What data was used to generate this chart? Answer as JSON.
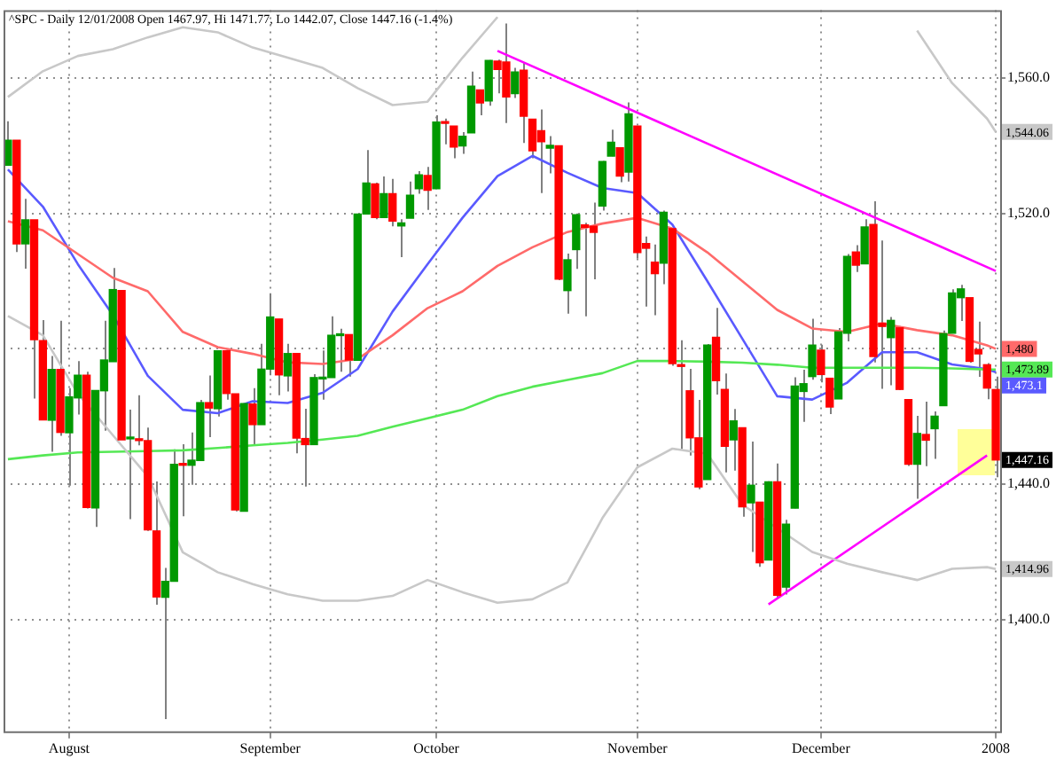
{
  "chart_data": {
    "type": "candlestick",
    "title": "^SPC - Daily 12/01/2008 Open 1467.97, Hi 1471.77, Lo 1442.07, Close 1447.16 (-1.4%)",
    "categories": [
      null,
      null,
      null,
      null,
      null,
      null,
      null,
      "August",
      null,
      null,
      null,
      null,
      null,
      null,
      null,
      null,
      null,
      null,
      null,
      null,
      null,
      null,
      null,
      null,
      null,
      null,
      null,
      null,
      null,
      null,
      "September",
      null,
      null,
      null,
      null,
      null,
      null,
      null,
      null,
      null,
      null,
      null,
      null,
      null,
      null,
      null,
      null,
      null,
      null,
      "October",
      null,
      null,
      null,
      null,
      null,
      null,
      null,
      null,
      null,
      null,
      null,
      null,
      null,
      null,
      null,
      null,
      null,
      null,
      null,
      null,
      null,
      null,
      "November",
      null,
      null,
      null,
      null,
      null,
      null,
      null,
      null,
      null,
      null,
      null,
      null,
      null,
      null,
      null,
      null,
      null,
      null,
      null,
      null,
      "December",
      null,
      null,
      null,
      null,
      null,
      null,
      null,
      null,
      null,
      null,
      null,
      null,
      null,
      null,
      null,
      null,
      null,
      null,
      null,
      "2008"
    ],
    "ohlc": [
      [
        1534.2,
        1547.2,
        1534.2,
        1541.6
      ],
      [
        1541.6,
        1541.6,
        1508.6,
        1511.0
      ],
      [
        1511.0,
        1524.3,
        1503.7,
        1518.1
      ],
      [
        1518.1,
        1518.1,
        1465.3,
        1482.7
      ],
      [
        1482.4,
        1488.5,
        1458.9,
        1459.0
      ],
      [
        1458.9,
        1477.9,
        1449.6,
        1473.9
      ],
      [
        1473.9,
        1488.3,
        1454.3,
        1455.3
      ],
      [
        1455.2,
        1468.4,
        1439.6,
        1465.8
      ],
      [
        1465.5,
        1476.4,
        1460.6,
        1472.2
      ],
      [
        1472.2,
        1473.2,
        1432.8,
        1433.1
      ],
      [
        1433.0,
        1467.7,
        1427.4,
        1467.7
      ],
      [
        1467.6,
        1488.3,
        1455.8,
        1476.7
      ],
      [
        1476.2,
        1503.9,
        1476.2,
        1497.5
      ],
      [
        1497.2,
        1497.2,
        1453.1,
        1453.1
      ],
      [
        1453.4,
        1462.0,
        1429.7,
        1453.6
      ],
      [
        1453.4,
        1466.3,
        1451.5,
        1452.9
      ],
      [
        1452.9,
        1456.7,
        1426.2,
        1426.5
      ],
      [
        1426.2,
        1440.8,
        1404.4,
        1406.7
      ],
      [
        1406.6,
        1415.3,
        1370.6,
        1411.3
      ],
      [
        1411.3,
        1450.3,
        1411.3,
        1445.9
      ],
      [
        1445.9,
        1451.8,
        1430.5,
        1445.6
      ],
      [
        1445.6,
        1455.3,
        1439.8,
        1447.1
      ],
      [
        1447.0,
        1464.9,
        1447.0,
        1464.1
      ],
      [
        1464.1,
        1472.1,
        1453.9,
        1462.5
      ],
      [
        1462.3,
        1479.4,
        1460.0,
        1479.4
      ],
      [
        1479.4,
        1479.4,
        1465.0,
        1466.8
      ],
      [
        1466.7,
        1466.7,
        1432.0,
        1432.4
      ],
      [
        1432.0,
        1463.8,
        1432.0,
        1463.8
      ],
      [
        1463.7,
        1468.4,
        1451.3,
        1457.6
      ],
      [
        1457.6,
        1481.5,
        1457.6,
        1474.0
      ],
      [
        1474.0,
        1496.4,
        1472.2,
        1489.4
      ],
      [
        1488.8,
        1488.8,
        1466.3,
        1472.3
      ],
      [
        1472.0,
        1481.5,
        1467.4,
        1478.6
      ],
      [
        1478.6,
        1478.6,
        1449.1,
        1453.6
      ],
      [
        1453.5,
        1462.3,
        1439.3,
        1451.7
      ],
      [
        1451.7,
        1472.5,
        1451.7,
        1471.5
      ],
      [
        1471.1,
        1479.5,
        1465.0,
        1471.6
      ],
      [
        1471.5,
        1489.6,
        1471.5,
        1484.0
      ],
      [
        1483.9,
        1485.9,
        1473.2,
        1484.3
      ],
      [
        1484.2,
        1484.2,
        1471.8,
        1476.7
      ],
      [
        1476.6,
        1519.9,
        1476.6,
        1519.8
      ],
      [
        1519.8,
        1538.7,
        1519.8,
        1529.0
      ],
      [
        1528.7,
        1529.1,
        1518.3,
        1518.8
      ],
      [
        1518.8,
        1530.9,
        1518.8,
        1525.8
      ],
      [
        1525.8,
        1530.2,
        1516.2,
        1517.7
      ],
      [
        1516.3,
        1518.3,
        1507.1,
        1517.2
      ],
      [
        1518.6,
        1529.4,
        1518.6,
        1525.4
      ],
      [
        1527.3,
        1532.5,
        1525.8,
        1531.4
      ],
      [
        1531.2,
        1533.7,
        1521.0,
        1526.8
      ],
      [
        1527.3,
        1549.0,
        1527.3,
        1547.0
      ],
      [
        1546.9,
        1548.0,
        1540.4,
        1546.6
      ],
      [
        1545.8,
        1545.8,
        1536.3,
        1539.6
      ],
      [
        1539.9,
        1544.0,
        1537.6,
        1542.8
      ],
      [
        1543.8,
        1561.9,
        1543.8,
        1557.6
      ],
      [
        1556.5,
        1556.5,
        1549.0,
        1552.6
      ],
      [
        1553.2,
        1565.3,
        1551.8,
        1565.2
      ],
      [
        1565.0,
        1565.4,
        1555.5,
        1562.5
      ],
      [
        1564.7,
        1576.1,
        1546.7,
        1554.4
      ],
      [
        1555.4,
        1563.0,
        1554.1,
        1561.8
      ],
      [
        1562.3,
        1564.7,
        1540.8,
        1548.7
      ],
      [
        1547.8,
        1547.8,
        1536.3,
        1538.5
      ],
      [
        1544.4,
        1550.7,
        1526.0,
        1541.2
      ],
      [
        1539.3,
        1542.8,
        1531.8,
        1540.1
      ],
      [
        1540.0,
        1540.0,
        1500.3,
        1500.6
      ],
      [
        1497.2,
        1508.1,
        1490.4,
        1506.3
      ],
      [
        1509.3,
        1520.0,
        1503.6,
        1519.6
      ],
      [
        1516.6,
        1517.2,
        1489.6,
        1515.9
      ],
      [
        1516.2,
        1523.2,
        1500.5,
        1514.4
      ],
      [
        1522.2,
        1535.5,
        1520.8,
        1535.3
      ],
      [
        1536.9,
        1544.7,
        1536.9,
        1541.0
      ],
      [
        1539.4,
        1539.4,
        1529.2,
        1531.0
      ],
      [
        1532.2,
        1552.8,
        1529.4,
        1549.4
      ],
      [
        1545.8,
        1545.8,
        1506.7,
        1508.4
      ],
      [
        1511.1,
        1513.2,
        1492.5,
        1509.7
      ],
      [
        1505.6,
        1510.8,
        1489.9,
        1502.2
      ],
      [
        1505.3,
        1520.8,
        1499.1,
        1520.3
      ],
      [
        1515.5,
        1515.5,
        1475.0,
        1475.6
      ],
      [
        1475.3,
        1482.5,
        1450.4,
        1474.8
      ],
      [
        1467.6,
        1474.1,
        1448.5,
        1453.7
      ],
      [
        1453.7,
        1464.9,
        1438.5,
        1439.2
      ],
      [
        1441.4,
        1481.4,
        1441.4,
        1481.1
      ],
      [
        1483.4,
        1492.1,
        1466.5,
        1470.6
      ],
      [
        1468.0,
        1472.7,
        1443.5,
        1451.2
      ],
      [
        1453.1,
        1462.2,
        1444.0,
        1458.7
      ],
      [
        1456.7,
        1456.7,
        1430.4,
        1433.3
      ],
      [
        1434.5,
        1452.6,
        1420.0,
        1439.7
      ],
      [
        1434.7,
        1434.7,
        1415.6,
        1416.8
      ],
      [
        1417.6,
        1440.9,
        1417.6,
        1440.7
      ],
      [
        1440.7,
        1446.1,
        1406.1,
        1407.2
      ],
      [
        1409.6,
        1429.5,
        1407.4,
        1428.2
      ],
      [
        1432.9,
        1471.6,
        1432.9,
        1469.0
      ],
      [
        1467.4,
        1473.8,
        1458.4,
        1469.7
      ],
      [
        1471.8,
        1488.9,
        1470.9,
        1481.1
      ],
      [
        1479.6,
        1481.2,
        1470.1,
        1472.4
      ],
      [
        1471.3,
        1471.3,
        1460.7,
        1462.8
      ],
      [
        1465.2,
        1486.1,
        1465.2,
        1485.0
      ],
      [
        1484.6,
        1508.0,
        1482.2,
        1507.3
      ],
      [
        1508.6,
        1510.6,
        1502.7,
        1504.7
      ],
      [
        1505.1,
        1518.3,
        1505.0,
        1516.0
      ],
      [
        1516.7,
        1523.6,
        1476.0,
        1477.7
      ],
      [
        1487.6,
        1512.0,
        1468.2,
        1486.6
      ],
      [
        1483.3,
        1489.4,
        1469.2,
        1488.4
      ],
      [
        1486.2,
        1486.7,
        1467.8,
        1468.0
      ],
      [
        1465.0,
        1465.0,
        1445.4,
        1445.9
      ],
      [
        1445.9,
        1460.2,
        1435.7,
        1455.0
      ],
      [
        1454.7,
        1464.4,
        1445.3,
        1453.0
      ],
      [
        1456.4,
        1461.5,
        1447.5,
        1460.1
      ],
      [
        1463.2,
        1485.4,
        1463.2,
        1484.5
      ],
      [
        1484.6,
        1497.6,
        1484.6,
        1496.5
      ],
      [
        1495.1,
        1498.9,
        1488.2,
        1497.7
      ],
      [
        1495.1,
        1495.1,
        1475.9,
        1476.3
      ],
      [
        1479.8,
        1488.0,
        1471.7,
        1478.5
      ],
      [
        1475.3,
        1475.8,
        1465.1,
        1468.4
      ],
      [
        1467.97,
        1471.77,
        1442.07,
        1447.16
      ]
    ],
    "colors": [
      "#009900",
      "#ff0000",
      "#009900",
      "#ff0000",
      "#ff0000",
      "#009900",
      "#ff0000",
      "#009900",
      "#009900",
      "#ff0000",
      "#009900",
      "#009900",
      "#009900",
      "#ff0000",
      "#009900",
      "#ff0000",
      "#ff0000",
      "#ff0000",
      "#009900",
      "#009900",
      "#ff0000",
      "#009900",
      "#009900",
      "#ff0000",
      "#009900",
      "#ff0000",
      "#ff0000",
      "#009900",
      "#ff0000",
      "#009900",
      "#009900",
      "#ff0000",
      "#009900",
      "#ff0000",
      "#ff0000",
      "#009900",
      "#009900",
      "#009900",
      "#009900",
      "#ff0000",
      "#009900",
      "#009900",
      "#ff0000",
      "#009900",
      "#ff0000",
      "#009900",
      "#009900",
      "#009900",
      "#ff0000",
      "#009900",
      "#ff0000",
      "#ff0000",
      "#009900",
      "#009900",
      "#ff0000",
      "#009900",
      "#ff0000",
      "#ff0000",
      "#009900",
      "#ff0000",
      "#ff0000",
      "#ff0000",
      "#009900",
      "#ff0000",
      "#009900",
      "#009900",
      "#ff0000",
      "#ff0000",
      "#009900",
      "#009900",
      "#ff0000",
      "#009900",
      "#ff0000",
      "#ff0000",
      "#ff0000",
      "#009900",
      "#ff0000",
      "#ff0000",
      "#ff0000",
      "#ff0000",
      "#009900",
      "#ff0000",
      "#ff0000",
      "#009900",
      "#ff0000",
      "#009900",
      "#ff0000",
      "#009900",
      "#ff0000",
      "#009900",
      "#009900",
      "#009900",
      "#009900",
      "#ff0000",
      "#ff0000",
      "#009900",
      "#009900",
      "#ff0000",
      "#009900",
      "#ff0000",
      "#ff0000",
      "#009900",
      "#ff0000",
      "#ff0000",
      "#009900",
      "#ff0000",
      "#009900",
      "#009900",
      "#009900",
      "#009900",
      "#ff0000",
      "#ff0000",
      "#ff0000",
      "#ff0000"
    ],
    "value_labels": [
      null,
      null,
      null,
      null,
      null,
      null,
      null,
      null,
      null,
      null,
      null,
      null,
      null,
      null,
      null,
      null,
      null,
      null,
      null,
      null,
      null,
      null,
      null,
      null,
      null,
      null,
      null,
      null,
      null,
      null,
      null,
      null,
      null,
      null,
      null,
      null,
      null,
      null,
      null,
      null,
      null,
      null,
      null,
      null,
      null,
      null,
      null,
      null,
      null,
      null,
      null,
      null,
      null,
      null,
      null,
      null,
      null,
      null,
      null,
      null,
      null,
      null,
      null,
      null,
      null,
      null,
      null,
      null,
      null,
      null,
      null,
      null,
      null,
      null,
      null,
      null,
      null,
      null,
      null,
      null,
      null,
      null,
      null,
      null,
      null,
      null,
      null,
      null,
      null,
      null,
      null,
      null,
      null,
      null,
      null,
      null,
      null,
      null,
      null,
      null,
      null,
      null,
      null,
      null,
      null,
      null,
      null,
      null,
      null,
      null,
      null,
      null,
      null,
      "1,447.16"
    ],
    "ylim": [
      1367,
      1580
    ],
    "yticks": [
      {
        "value": 1400,
        "label": "1,400.0"
      },
      {
        "value": 1440,
        "label": "1,440.0"
      },
      {
        "value": 1480,
        "label": null
      },
      {
        "value": 1520,
        "label": "1,520.0"
      },
      {
        "value": 1560,
        "label": "1,560.0"
      }
    ],
    "grid": true,
    "series": [
      {
        "type": "line",
        "color": "#c8c8c8",
        "values": [
          1554.4,
          null,
          null,
          null,
          1562,
          null,
          null,
          null,
          1566.5,
          null,
          null,
          null,
          1568.5,
          null,
          null,
          null,
          1572,
          null,
          null,
          null,
          1575,
          null,
          null,
          null,
          1573.5,
          null,
          null,
          null,
          1569,
          null,
          null,
          null,
          1566,
          null,
          null,
          null,
          1563,
          null,
          null,
          null,
          1557,
          null,
          null,
          null,
          1552,
          null,
          null,
          null,
          1553,
          null,
          null,
          null,
          1566,
          null,
          null,
          null,
          1578,
          null,
          null,
          null,
          null,
          null,
          null,
          null,
          null,
          null,
          null,
          null,
          null,
          null,
          null,
          null,
          null,
          null,
          null,
          null,
          null,
          null,
          null,
          null,
          null,
          null,
          null,
          null,
          null,
          null,
          null,
          null,
          null,
          null,
          null,
          null,
          null,
          null,
          null,
          null,
          null,
          null,
          null,
          null,
          null,
          null,
          null,
          null,
          null,
          null,
          null,
          null,
          null,
          null,
          null,
          null,
          null,
          null
        ]
      },
      {
        "type": "line",
        "color": "#c8c8c8",
        "values": [
          null,
          null,
          null,
          null,
          null,
          null,
          null,
          null,
          null,
          null,
          null,
          null,
          null,
          null,
          null,
          null,
          null,
          null,
          null,
          null,
          null,
          null,
          null,
          null,
          null,
          null,
          null,
          null,
          null,
          null,
          null,
          null,
          null,
          null,
          null,
          null,
          null,
          null,
          null,
          null,
          null,
          null,
          null,
          null,
          null,
          null,
          null,
          null,
          null,
          null,
          null,
          null,
          null,
          null,
          null,
          null,
          null,
          null,
          null,
          null,
          null,
          null,
          null,
          null,
          null,
          null,
          null,
          null,
          null,
          null,
          null,
          null,
          null,
          null,
          null,
          null,
          null,
          null,
          null,
          null,
          null,
          null,
          null,
          null,
          null,
          null,
          null,
          null,
          null,
          null,
          null,
          null,
          null,
          null,
          null,
          null,
          null,
          null,
          null,
          null,
          null,
          null,
          null,
          null,
          1574,
          null,
          null,
          null,
          1558.5,
          null,
          null,
          null,
          1548,
          1544.06
        ],
        "value_labels": [
          null,
          null,
          null,
          null,
          null,
          null,
          null,
          null,
          null,
          null,
          null,
          null,
          null,
          null,
          null,
          null,
          null,
          null,
          null,
          null,
          null,
          null,
          null,
          null,
          null,
          null,
          null,
          null,
          null,
          null,
          null,
          null,
          null,
          null,
          null,
          null,
          null,
          null,
          null,
          null,
          null,
          null,
          null,
          null,
          null,
          null,
          null,
          null,
          null,
          null,
          null,
          null,
          null,
          null,
          null,
          null,
          null,
          null,
          null,
          null,
          null,
          null,
          null,
          null,
          null,
          null,
          null,
          null,
          null,
          null,
          null,
          null,
          null,
          null,
          null,
          null,
          null,
          null,
          null,
          null,
          null,
          null,
          null,
          null,
          null,
          null,
          null,
          null,
          null,
          null,
          null,
          null,
          null,
          null,
          null,
          null,
          null,
          null,
          null,
          null,
          null,
          null,
          null,
          null,
          null,
          null,
          null,
          null,
          null,
          null,
          null,
          null,
          null,
          "1,544.06"
        ]
      },
      {
        "type": "line",
        "color": "#c8c8c8",
        "values": [
          1489.7,
          null,
          null,
          null,
          1484,
          null,
          null,
          null,
          1466.7,
          null,
          null,
          null,
          1454.5,
          null,
          null,
          null,
          1442.3,
          null,
          null,
          null,
          1419.9,
          null,
          null,
          null,
          1414,
          null,
          null,
          null,
          1410.5,
          null,
          null,
          null,
          1407.5,
          null,
          null,
          null,
          1405.6,
          null,
          null,
          null,
          1405.6,
          null,
          null,
          null,
          1407,
          null,
          null,
          null,
          1411.7,
          null,
          null,
          null,
          1408.1,
          null,
          null,
          null,
          1405,
          null,
          null,
          null,
          1406,
          null,
          null,
          null,
          1411,
          null,
          null,
          null,
          1430,
          null,
          null,
          null,
          1445,
          null,
          null,
          null,
          1450.5,
          null,
          null,
          null,
          1449,
          null,
          null,
          null,
          1434,
          null,
          null,
          null,
          null,
          null,
          null,
          null,
          1420,
          null,
          null,
          null,
          1416.5,
          null,
          null,
          null,
          1414,
          null,
          null,
          null,
          1411.7,
          null,
          null,
          null,
          1415,
          null,
          null,
          null,
          1415.5,
          1414.96
        ],
        "value_labels": [
          null,
          null,
          null,
          null,
          null,
          null,
          null,
          null,
          null,
          null,
          null,
          null,
          null,
          null,
          null,
          null,
          null,
          null,
          null,
          null,
          null,
          null,
          null,
          null,
          null,
          null,
          null,
          null,
          null,
          null,
          null,
          null,
          null,
          null,
          null,
          null,
          null,
          null,
          null,
          null,
          null,
          null,
          null,
          null,
          null,
          null,
          null,
          null,
          null,
          null,
          null,
          null,
          null,
          null,
          null,
          null,
          null,
          null,
          null,
          null,
          null,
          null,
          null,
          null,
          null,
          null,
          null,
          null,
          null,
          null,
          null,
          null,
          null,
          null,
          null,
          null,
          null,
          null,
          null,
          null,
          null,
          null,
          null,
          null,
          null,
          null,
          null,
          null,
          null,
          null,
          null,
          null,
          null,
          null,
          null,
          null,
          null,
          null,
          null,
          null,
          null,
          null,
          null,
          null,
          null,
          null,
          null,
          null,
          null,
          null,
          null,
          null,
          null,
          "1,414.96"
        ]
      },
      {
        "type": "line",
        "color": "#55e855",
        "values": [
          1447.4,
          null,
          null,
          null,
          1448.5,
          null,
          null,
          null,
          1449.4,
          null,
          null,
          null,
          1449.6,
          null,
          null,
          null,
          1449.8,
          null,
          null,
          null,
          1450,
          null,
          null,
          null,
          1450.7,
          null,
          null,
          null,
          1451.5,
          null,
          null,
          null,
          1452.2,
          null,
          null,
          null,
          1453.2,
          null,
          null,
          null,
          1454.3,
          null,
          null,
          null,
          1457,
          null,
          null,
          null,
          1459.5,
          null,
          null,
          null,
          1462,
          null,
          null,
          null,
          1466,
          null,
          null,
          null,
          1468.8,
          null,
          null,
          null,
          1470.8,
          null,
          null,
          null,
          1472.8,
          null,
          null,
          null,
          1476.4,
          null,
          null,
          null,
          1476.4,
          null,
          null,
          null,
          1476.2,
          null,
          null,
          null,
          1475.9,
          null,
          null,
          null,
          1475.3,
          null,
          null,
          null,
          1474.4,
          null,
          null,
          null,
          1474.4,
          null,
          null,
          null,
          1474.4,
          null,
          null,
          null,
          1474.4,
          null,
          null,
          null,
          1474.2,
          null,
          null,
          null,
          1473.9,
          1473.89
        ],
        "value_labels": [
          null,
          null,
          null,
          null,
          null,
          null,
          null,
          null,
          null,
          null,
          null,
          null,
          null,
          null,
          null,
          null,
          null,
          null,
          null,
          null,
          null,
          null,
          null,
          null,
          null,
          null,
          null,
          null,
          null,
          null,
          null,
          null,
          null,
          null,
          null,
          null,
          null,
          null,
          null,
          null,
          null,
          null,
          null,
          null,
          null,
          null,
          null,
          null,
          null,
          null,
          null,
          null,
          null,
          null,
          null,
          null,
          null,
          null,
          null,
          null,
          null,
          null,
          null,
          null,
          null,
          null,
          null,
          null,
          null,
          null,
          null,
          null,
          null,
          null,
          null,
          null,
          null,
          null,
          null,
          null,
          null,
          null,
          null,
          null,
          null,
          null,
          null,
          null,
          null,
          null,
          null,
          null,
          null,
          null,
          null,
          null,
          null,
          null,
          null,
          null,
          null,
          null,
          null,
          null,
          null,
          null,
          null,
          null,
          null,
          null,
          null,
          null,
          null,
          "1,473.89"
        ]
      },
      {
        "type": "line",
        "color": "#ff6a6a",
        "values": [
          1517.7,
          null,
          null,
          null,
          1515,
          null,
          null,
          null,
          1508,
          null,
          null,
          null,
          1501,
          null,
          null,
          null,
          1497,
          null,
          null,
          null,
          1485,
          null,
          null,
          null,
          1480.5,
          null,
          null,
          null,
          1478.5,
          null,
          null,
          null,
          1476,
          null,
          null,
          null,
          1475.5,
          null,
          null,
          null,
          1477,
          null,
          null,
          null,
          1484,
          null,
          null,
          null,
          1492,
          null,
          null,
          null,
          1497,
          null,
          null,
          null,
          1504.5,
          null,
          null,
          null,
          1510,
          null,
          null,
          null,
          1514.5,
          null,
          null,
          null,
          1517,
          null,
          null,
          null,
          1518.7,
          null,
          null,
          null,
          1515.5,
          null,
          null,
          null,
          1508.5,
          null,
          null,
          null,
          1500,
          null,
          null,
          null,
          1491.5,
          null,
          null,
          null,
          1486,
          null,
          null,
          null,
          1485,
          null,
          null,
          null,
          1487.5,
          null,
          null,
          null,
          1485.5,
          null,
          null,
          null,
          1484,
          null,
          null,
          null,
          1481,
          1480
        ],
        "value_labels": [
          null,
          null,
          null,
          null,
          null,
          null,
          null,
          null,
          null,
          null,
          null,
          null,
          null,
          null,
          null,
          null,
          null,
          null,
          null,
          null,
          null,
          null,
          null,
          null,
          null,
          null,
          null,
          null,
          null,
          null,
          null,
          null,
          null,
          null,
          null,
          null,
          null,
          null,
          null,
          null,
          null,
          null,
          null,
          null,
          null,
          null,
          null,
          null,
          null,
          null,
          null,
          null,
          null,
          null,
          null,
          null,
          null,
          null,
          null,
          null,
          null,
          null,
          null,
          null,
          null,
          null,
          null,
          null,
          null,
          null,
          null,
          null,
          null,
          null,
          null,
          null,
          null,
          null,
          null,
          null,
          null,
          null,
          null,
          null,
          null,
          null,
          null,
          null,
          null,
          null,
          null,
          null,
          null,
          null,
          null,
          null,
          null,
          null,
          null,
          null,
          null,
          null,
          null,
          null,
          null,
          null,
          null,
          null,
          null,
          null,
          null,
          null,
          null,
          "1,480"
        ]
      },
      {
        "type": "line",
        "color": "#5a5aff",
        "values": [
          1533,
          null,
          null,
          null,
          1522,
          null,
          null,
          null,
          1505,
          null,
          null,
          null,
          1490,
          null,
          null,
          null,
          1472,
          null,
          null,
          null,
          1462,
          null,
          null,
          null,
          1461,
          null,
          null,
          null,
          1464.5,
          null,
          null,
          null,
          1464,
          null,
          null,
          null,
          1467,
          null,
          null,
          null,
          1474,
          null,
          null,
          null,
          1491,
          null,
          null,
          null,
          1505,
          null,
          null,
          null,
          1518.7,
          null,
          null,
          null,
          1531,
          null,
          null,
          null,
          1537,
          null,
          null,
          null,
          1532,
          null,
          null,
          null,
          1527.5,
          null,
          null,
          null,
          1526,
          null,
          null,
          null,
          1516.7,
          null,
          null,
          null,
          1500,
          null,
          null,
          null,
          1483,
          null,
          null,
          null,
          1466,
          null,
          null,
          null,
          1465,
          null,
          null,
          null,
          1470,
          null,
          null,
          null,
          1479,
          null,
          null,
          null,
          1479,
          null,
          null,
          null,
          1475.4,
          null,
          null,
          null,
          1474,
          1473.1
        ],
        "value_labels": [
          null,
          null,
          null,
          null,
          null,
          null,
          null,
          null,
          null,
          null,
          null,
          null,
          null,
          null,
          null,
          null,
          null,
          null,
          null,
          null,
          null,
          null,
          null,
          null,
          null,
          null,
          null,
          null,
          null,
          null,
          null,
          null,
          null,
          null,
          null,
          null,
          null,
          null,
          null,
          null,
          null,
          null,
          null,
          null,
          null,
          null,
          null,
          null,
          null,
          null,
          null,
          null,
          null,
          null,
          null,
          null,
          null,
          null,
          null,
          null,
          null,
          null,
          null,
          null,
          null,
          null,
          null,
          null,
          null,
          null,
          null,
          null,
          null,
          null,
          null,
          null,
          null,
          null,
          null,
          null,
          null,
          null,
          null,
          null,
          null,
          null,
          null,
          null,
          null,
          null,
          null,
          null,
          null,
          null,
          null,
          null,
          null,
          null,
          null,
          null,
          null,
          null,
          null,
          null,
          null,
          null,
          null,
          null,
          null,
          null,
          null,
          null,
          null,
          "1,473.1"
        ]
      },
      {
        "type": "line",
        "color": "#ff00ff",
        "values": [
          null,
          null,
          null,
          null,
          null,
          null,
          null,
          null,
          null,
          null,
          null,
          null,
          null,
          null,
          null,
          null,
          null,
          null,
          null,
          null,
          null,
          null,
          null,
          null,
          null,
          null,
          null,
          null,
          null,
          null,
          null,
          null,
          null,
          null,
          null,
          null,
          null,
          null,
          null,
          null,
          null,
          null,
          null,
          null,
          null,
          null,
          null,
          null,
          null,
          null,
          null,
          null,
          null,
          null,
          null,
          null,
          1568,
          null,
          null,
          null,
          null,
          null,
          null,
          null,
          null,
          null,
          null,
          null,
          null,
          null,
          null,
          null,
          null,
          null,
          null,
          null,
          null,
          null,
          null,
          null,
          null,
          null,
          null,
          null,
          null,
          null,
          null,
          null,
          null,
          null,
          null,
          null,
          null,
          null,
          null,
          null,
          null,
          null,
          null,
          null,
          null,
          null,
          null,
          null,
          null,
          null,
          null,
          null,
          null,
          null,
          null,
          null,
          null,
          1503
        ]
      },
      {
        "type": "line",
        "color": "#ff00ff",
        "values": [
          null,
          null,
          null,
          null,
          null,
          null,
          null,
          null,
          null,
          null,
          null,
          null,
          null,
          null,
          null,
          null,
          null,
          null,
          null,
          null,
          null,
          null,
          null,
          null,
          null,
          null,
          null,
          null,
          null,
          null,
          null,
          null,
          null,
          null,
          null,
          null,
          null,
          null,
          null,
          null,
          null,
          null,
          null,
          null,
          null,
          null,
          null,
          null,
          null,
          null,
          null,
          null,
          null,
          null,
          null,
          null,
          null,
          null,
          null,
          null,
          null,
          null,
          null,
          null,
          null,
          null,
          null,
          null,
          null,
          null,
          null,
          null,
          null,
          null,
          null,
          null,
          null,
          null,
          null,
          null,
          null,
          null,
          null,
          null,
          null,
          null,
          null,
          1404.5,
          null,
          null,
          null,
          null,
          null,
          null,
          null,
          null,
          null,
          null,
          null,
          null,
          null,
          null,
          null,
          null,
          null,
          null,
          null,
          null,
          null,
          null,
          null,
          null,
          1448.5,
          null
        ]
      }
    ]
  }
}
